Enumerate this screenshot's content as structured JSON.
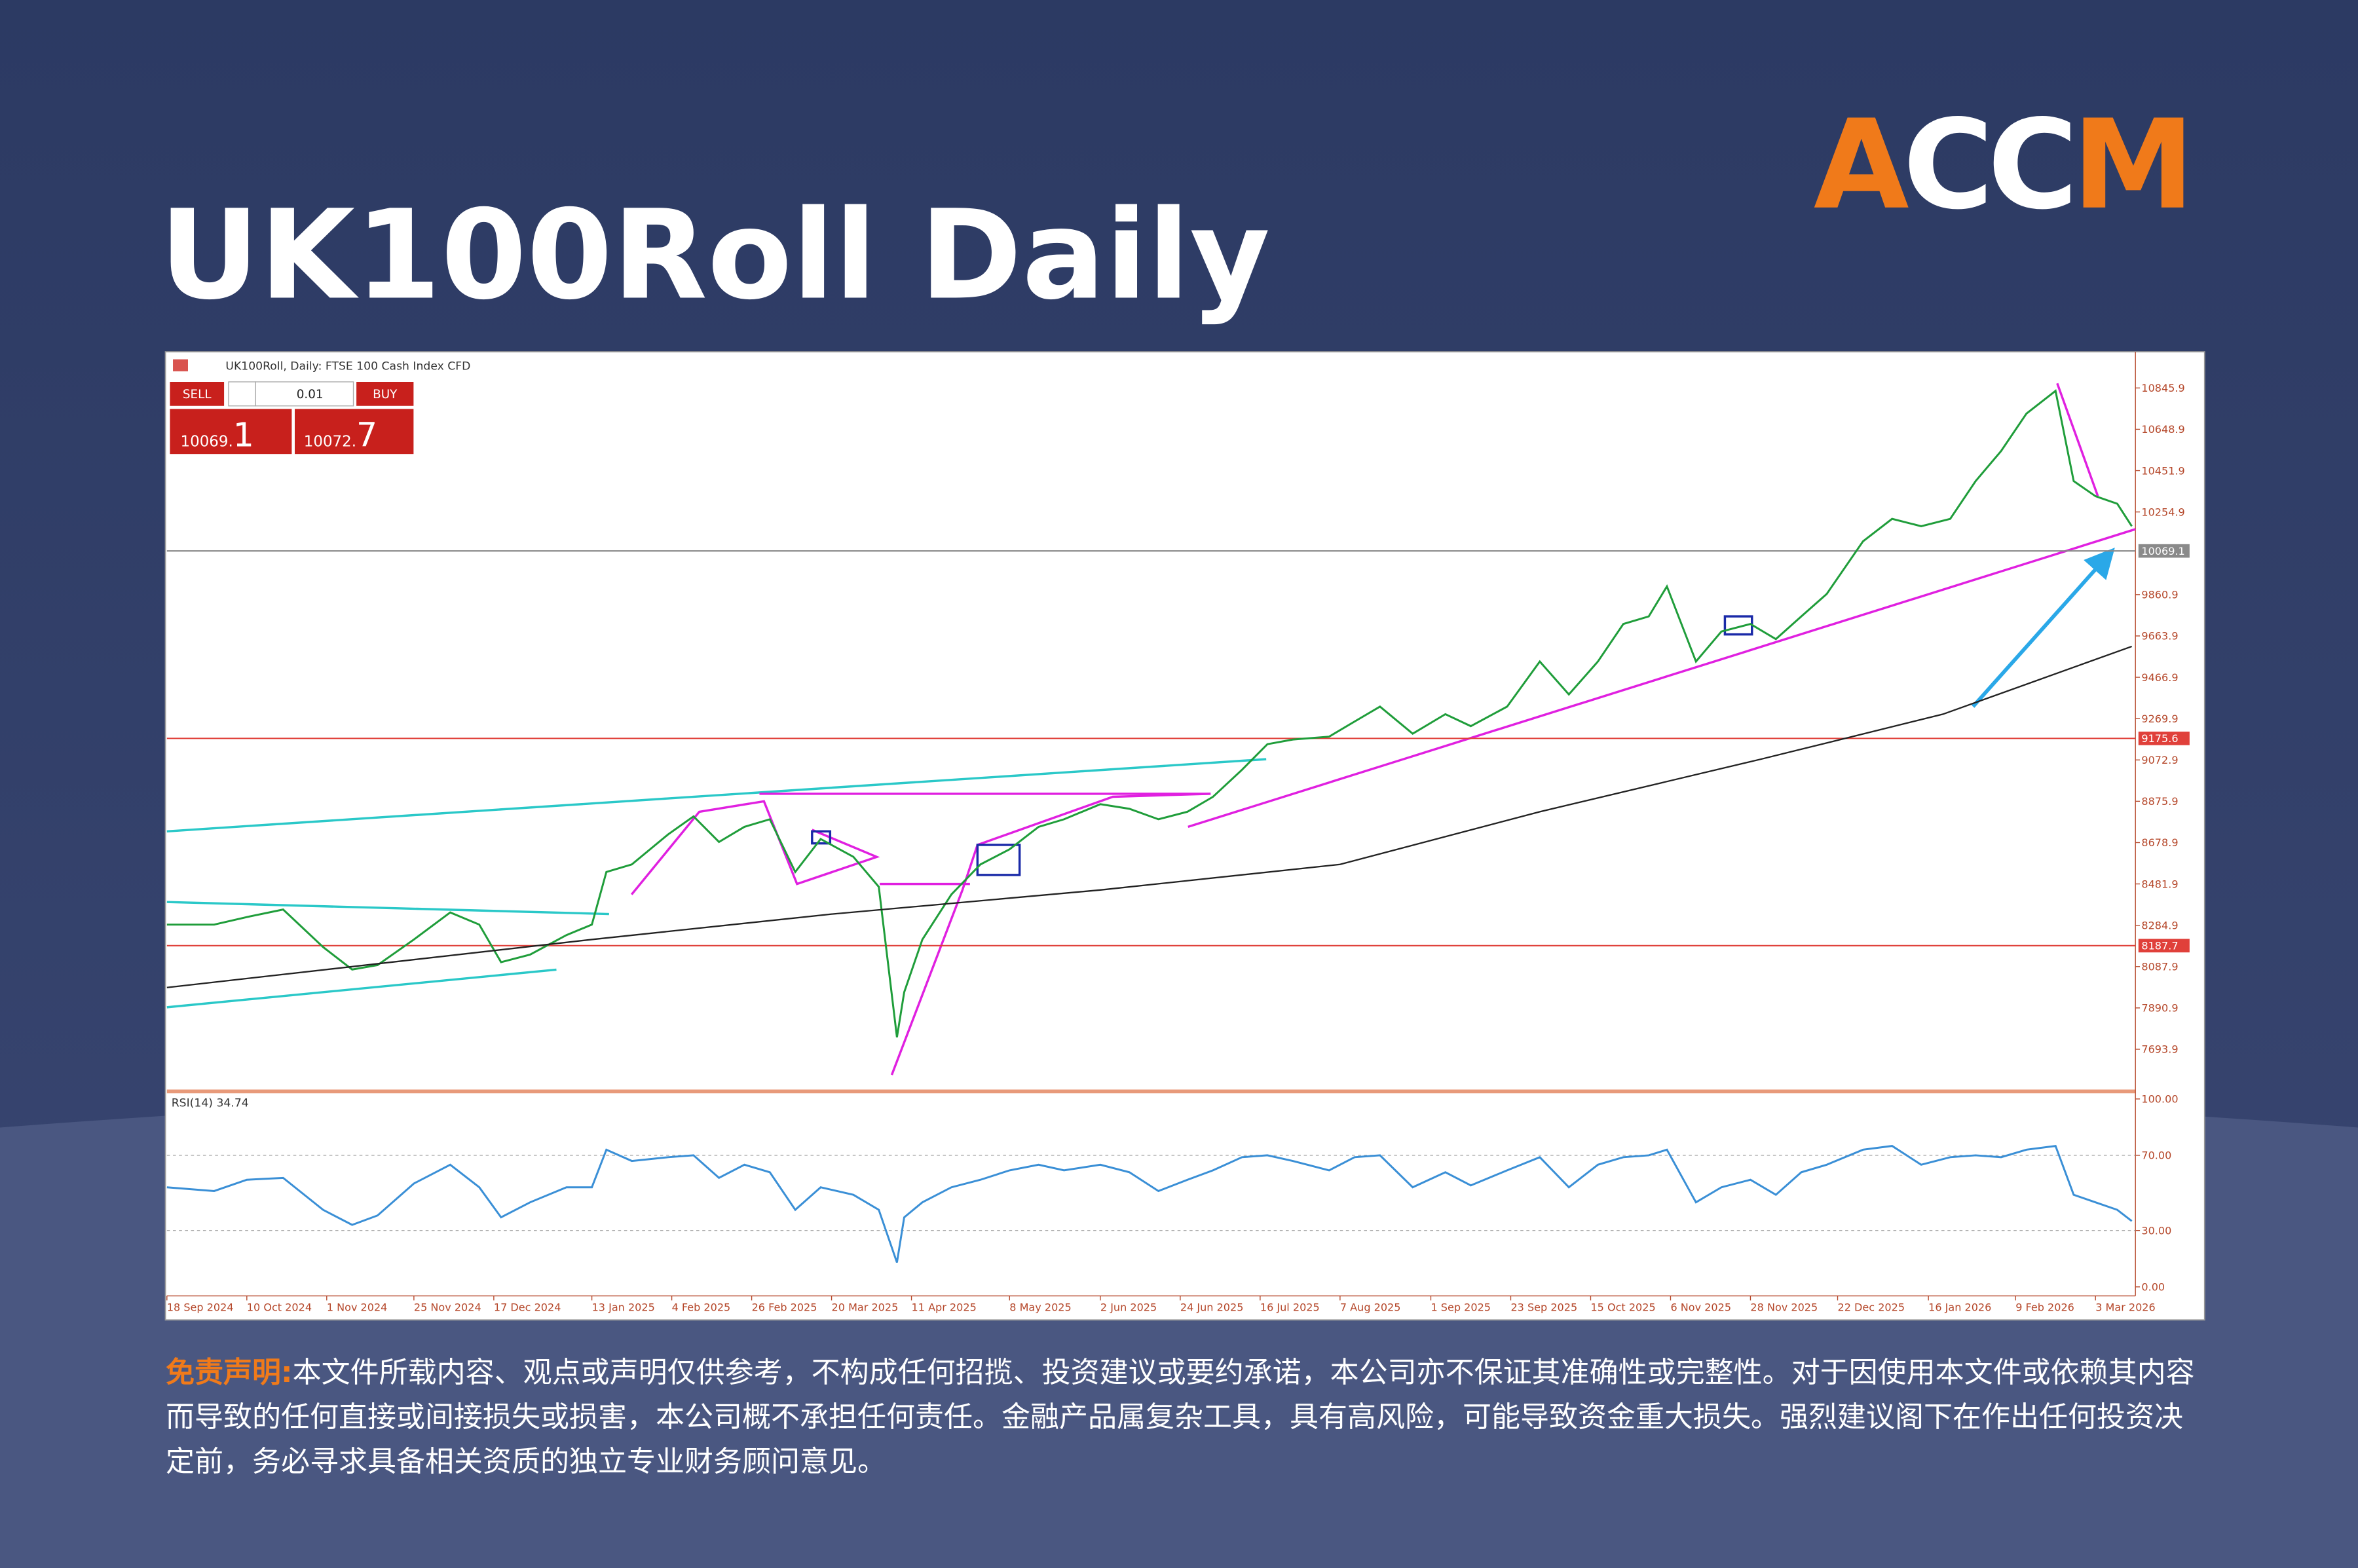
{
  "header": {
    "title": "UK100Roll Daily",
    "logo": "ACCM"
  },
  "window": {
    "caption": "UK100Roll, Daily: FTSE 100 Cash Index CFD",
    "sell": "SELL",
    "buy": "BUY",
    "lot": "0.01",
    "sell_price_main": "10069.",
    "sell_price_frac": "1",
    "buy_price_main": "10072.",
    "buy_price_frac": "7"
  },
  "chart_data": [
    {
      "type": "line",
      "xlim": [
        "2024-09-18",
        "2026-03-14"
      ],
      "ylim": [
        7500,
        11004
      ],
      "yticks": [
        7693.9,
        7890.9,
        8087.9,
        8284.9,
        8481.9,
        8678.9,
        8875.9,
        9072.9,
        9269.9,
        9466.9,
        9663.9,
        9860.9,
        10254.9,
        10451.9,
        10648.9,
        10845.9
      ],
      "x": [
        "2024-09-18",
        "2024-10-01",
        "2024-10-10",
        "2024-10-20",
        "2024-10-31",
        "2024-11-08",
        "2024-11-15",
        "2024-11-25",
        "2024-12-05",
        "2024-12-13",
        "2024-12-19",
        "2024-12-27",
        "2025-01-06",
        "2025-01-13",
        "2025-01-17",
        "2025-01-24",
        "2025-02-03",
        "2025-02-10",
        "2025-02-17",
        "2025-02-24",
        "2025-03-03",
        "2025-03-10",
        "2025-03-17",
        "2025-03-26",
        "2025-04-02",
        "2025-04-07",
        "2025-04-09",
        "2025-04-14",
        "2025-04-22",
        "2025-04-30",
        "2025-05-08",
        "2025-05-16",
        "2025-05-23",
        "2025-06-02",
        "2025-06-10",
        "2025-06-18",
        "2025-06-26",
        "2025-07-03",
        "2025-07-11",
        "2025-07-18",
        "2025-07-25",
        "2025-08-04",
        "2025-08-11",
        "2025-08-18",
        "2025-08-27",
        "2025-09-05",
        "2025-09-12",
        "2025-09-22",
        "2025-10-01",
        "2025-10-09",
        "2025-10-17",
        "2025-10-24",
        "2025-10-31",
        "2025-11-05",
        "2025-11-13",
        "2025-11-20",
        "2025-11-28",
        "2025-12-05",
        "2025-12-12",
        "2025-12-19",
        "2025-12-29",
        "2026-01-06",
        "2026-01-14",
        "2026-01-22",
        "2026-01-29",
        "2026-02-05",
        "2026-02-12",
        "2026-02-20",
        "2026-02-25",
        "2026-03-03",
        "2026-03-09",
        "2026-03-13"
      ],
      "series": [
        {
          "color": "#1f9d3a",
          "values": [
            8288,
            8288,
            8324,
            8360,
            8181,
            8074,
            8095,
            8217,
            8346,
            8288,
            8109,
            8145,
            8238,
            8288,
            8539,
            8575,
            8718,
            8804,
            8682,
            8754,
            8790,
            8539,
            8696,
            8611,
            8468,
            7751,
            7966,
            8217,
            8432,
            8575,
            8647,
            8754,
            8790,
            8862,
            8840,
            8790,
            8826,
            8897,
            9026,
            9148,
            9170,
            9184,
            9256,
            9327,
            9198,
            9291,
            9234,
            9327,
            9542,
            9385,
            9542,
            9721,
            9757,
            9900,
            9542,
            9685,
            9721,
            9649,
            9757,
            9864,
            10115,
            10222,
            10187,
            10222,
            10402,
            10545,
            10724,
            10832,
            10402,
            10330,
            10294,
            10187
          ]
        },
        {
          "color": "#222222",
          "x": [
            "2024-09-18",
            "2025-01-13",
            "2025-03-20",
            "2025-06-02",
            "2025-08-07",
            "2025-10-01",
            "2025-12-01",
            "2026-01-20",
            "2026-03-13"
          ],
          "values": [
            7988,
            8217,
            8338,
            8453,
            8575,
            8826,
            9077,
            9291,
            9614
          ]
        }
      ],
      "hlines": [
        {
          "value": 10069.1,
          "color": "#8a8a8a"
        },
        {
          "value": 9175.6,
          "color": "#e0403a"
        },
        {
          "value": 8187.7,
          "color": "#e0403a"
        }
      ]
    },
    {
      "type": "line",
      "title": "RSI(14) 34.74",
      "xlim": [
        "2024-09-18",
        "2026-03-14"
      ],
      "ylim": [
        0,
        100
      ],
      "yticks": [
        {
          "value": 0,
          "label": "0.00"
        },
        {
          "value": 30,
          "label": "30.00"
        },
        {
          "value": 70,
          "label": "70.00"
        },
        {
          "value": 100,
          "label": "100.00"
        }
      ],
      "xticks": [
        {
          "value": "2024-09-18",
          "label": "18 Sep 2024"
        },
        {
          "value": "2024-10-10",
          "label": "10 Oct 2024"
        },
        {
          "value": "2024-11-01",
          "label": "1 Nov 2024"
        },
        {
          "value": "2024-11-25",
          "label": "25 Nov 2024"
        },
        {
          "value": "2024-12-17",
          "label": "17 Dec 2024"
        },
        {
          "value": "2025-01-13",
          "label": "13 Jan 2025"
        },
        {
          "value": "2025-02-04",
          "label": "4 Feb 2025"
        },
        {
          "value": "2025-02-26",
          "label": "26 Feb 2025"
        },
        {
          "value": "2025-03-20",
          "label": "20 Mar 2025"
        },
        {
          "value": "2025-04-11",
          "label": "11 Apr 2025"
        },
        {
          "value": "2025-05-08",
          "label": "8 May 2025"
        },
        {
          "value": "2025-06-02",
          "label": "2 Jun 2025"
        },
        {
          "value": "2025-06-24",
          "label": "24 Jun 2025"
        },
        {
          "value": "2025-07-16",
          "label": "16 Jul 2025"
        },
        {
          "value": "2025-08-07",
          "label": "7 Aug 2025"
        },
        {
          "value": "2025-09-01",
          "label": "1 Sep 2025"
        },
        {
          "value": "2025-09-23",
          "label": "23 Sep 2025"
        },
        {
          "value": "2025-10-15",
          "label": "15 Oct 2025"
        },
        {
          "value": "2025-11-06",
          "label": "6 Nov 2025"
        },
        {
          "value": "2025-11-28",
          "label": "28 Nov 2025"
        },
        {
          "value": "2025-12-22",
          "label": "22 Dec 2025"
        },
        {
          "value": "2026-01-16",
          "label": "16 Jan 2026"
        },
        {
          "value": "2026-02-09",
          "label": "9 Feb 2026"
        },
        {
          "value": "2026-03-03",
          "label": "3 Mar 2026"
        }
      ],
      "x": [
        "2024-09-18",
        "2024-10-01",
        "2024-10-10",
        "2024-10-20",
        "2024-10-31",
        "2024-11-08",
        "2024-11-15",
        "2024-11-25",
        "2024-12-05",
        "2024-12-13",
        "2024-12-19",
        "2024-12-27",
        "2025-01-06",
        "2025-01-13",
        "2025-01-17",
        "2025-01-24",
        "2025-02-03",
        "2025-02-10",
        "2025-02-17",
        "2025-02-24",
        "2025-03-03",
        "2025-03-10",
        "2025-03-17",
        "2025-03-26",
        "2025-04-02",
        "2025-04-07",
        "2025-04-09",
        "2025-04-14",
        "2025-04-22",
        "2025-04-30",
        "2025-05-08",
        "2025-05-16",
        "2025-05-23",
        "2025-06-02",
        "2025-06-10",
        "2025-06-18",
        "2025-06-26",
        "2025-07-03",
        "2025-07-11",
        "2025-07-18",
        "2025-07-25",
        "2025-08-04",
        "2025-08-11",
        "2025-08-18",
        "2025-08-27",
        "2025-09-05",
        "2025-09-12",
        "2025-09-22",
        "2025-10-01",
        "2025-10-09",
        "2025-10-17",
        "2025-10-24",
        "2025-10-31",
        "2025-11-05",
        "2025-11-13",
        "2025-11-20",
        "2025-11-28",
        "2025-12-05",
        "2025-12-12",
        "2025-12-19",
        "2025-12-29",
        "2026-01-06",
        "2026-01-14",
        "2026-01-22",
        "2026-01-29",
        "2026-02-05",
        "2026-02-12",
        "2026-02-20",
        "2026-02-25",
        "2026-03-03",
        "2026-03-09",
        "2026-03-13"
      ],
      "series": [
        {
          "color": "#3a8fd6",
          "values": [
            53,
            51,
            57,
            58,
            41,
            33,
            38,
            55,
            65,
            53,
            37,
            45,
            53,
            53,
            73,
            67,
            69,
            70,
            58,
            65,
            61,
            41,
            53,
            49,
            41,
            13,
            37,
            45,
            53,
            57,
            62,
            65,
            62,
            65,
            61,
            51,
            57,
            62,
            69,
            70,
            67,
            62,
            69,
            70,
            53,
            61,
            54,
            62,
            69,
            53,
            65,
            69,
            70,
            73,
            45,
            53,
            57,
            49,
            61,
            65,
            73,
            75,
            65,
            69,
            70,
            69,
            73,
            75,
            49,
            45,
            41,
            35
          ]
        }
      ]
    }
  ],
  "disclaimer": {
    "heading": "免责声明:",
    "text": "本文件所载内容、观点或声明仅供参考，不构成任何招揽、投资建议或要约承诺，本公司亦不保证其准确性或完整性。对于因使用本文件或依赖其内容而导致的任何直接或间接损失或损害，本公司概不承担任何责任。金融产品属复杂工具，具有高风险，可能导致资金重大损失。强烈建议阁下在作出任何投资决定前，务必寻求具备相关资质的独立专业财务顾问意见。"
  }
}
